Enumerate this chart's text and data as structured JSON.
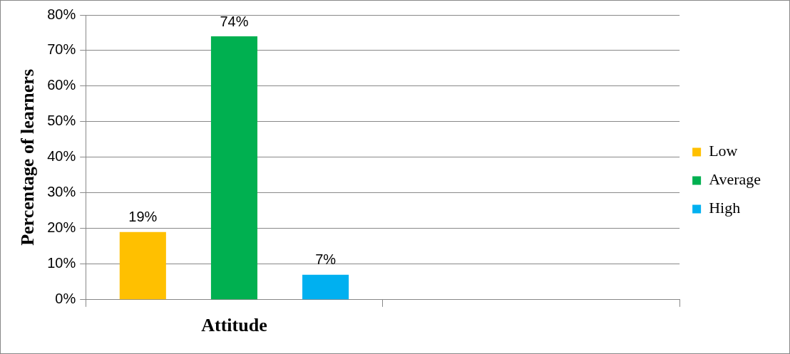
{
  "chart_data": {
    "type": "bar",
    "ylabel": "Percentage of learners",
    "categories": [
      "Attitude",
      null
    ],
    "series": [
      {
        "name": "Low",
        "color": "#ffc000",
        "values": [
          19,
          null
        ],
        "value_labels": [
          "19%",
          null
        ]
      },
      {
        "name": "Average",
        "color": "#00b050",
        "values": [
          74,
          null
        ],
        "value_labels": [
          "74%",
          null
        ]
      },
      {
        "name": "High",
        "color": "#00b0f0",
        "values": [
          7,
          null
        ],
        "value_labels": [
          "7%",
          null
        ]
      }
    ],
    "ylim": [
      0,
      80
    ],
    "yticks": [
      {
        "value": 0,
        "label": "0%"
      },
      {
        "value": 10,
        "label": "10%"
      },
      {
        "value": 20,
        "label": "20%"
      },
      {
        "value": 30,
        "label": "30%"
      },
      {
        "value": 40,
        "label": "40%"
      },
      {
        "value": 50,
        "label": "50%"
      },
      {
        "value": 60,
        "label": "60%"
      },
      {
        "value": 70,
        "label": "70%"
      },
      {
        "value": 80,
        "label": "80%"
      }
    ],
    "grid": "y",
    "legend": "right"
  }
}
